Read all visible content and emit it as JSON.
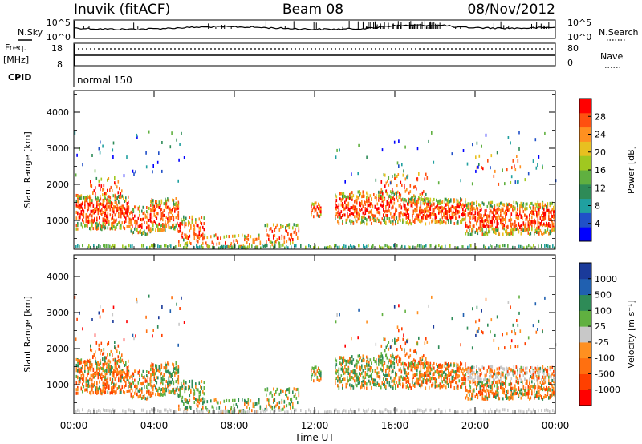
{
  "header": {
    "station": "Inuvik (fitACF)",
    "beam": "Beam 08",
    "date": "08/Nov/2012"
  },
  "top_panel": {
    "left_label_nsky": "N.Sky",
    "left_ticks": [
      "10^5",
      "10^0"
    ],
    "right_ticks": [
      "10^5",
      "10^0"
    ],
    "right_label": "N.Search"
  },
  "freq_panel": {
    "left_label_freq": "Freq.",
    "left_label_unit": "[MHz]",
    "left_ticks": [
      "18",
      "8"
    ],
    "right_ticks": [
      "80",
      "0"
    ],
    "right_label": "Nave"
  },
  "cpid_panel": {
    "label": "CPID",
    "value": "normal 150"
  },
  "chart_data": [
    {
      "type": "heatmap",
      "name": "power",
      "ylabel": "Slant Range [km]",
      "yticks": [
        "4000",
        "3000",
        "2000",
        "1000"
      ],
      "ylim": [
        200,
        4600
      ],
      "colorbar_label": "Power [dB]",
      "colorbar_ticks": [
        "28",
        "24",
        "20",
        "16",
        "12",
        "8",
        "4"
      ],
      "colorbar_colors": [
        "#0000ff",
        "#2050c8",
        "#20a0a0",
        "#2e8b57",
        "#60b040",
        "#a0c820",
        "#e8c020",
        "#ff9020",
        "#ff5010",
        "#ff0000"
      ]
    },
    {
      "type": "heatmap",
      "name": "velocity",
      "ylabel": "Slant Range [km]",
      "yticks": [
        "4000",
        "3000",
        "2000",
        "1000"
      ],
      "ylim": [
        200,
        4600
      ],
      "colorbar_label": "Velocity [m s⁻¹]",
      "colorbar_ticks": [
        "1000",
        "500",
        "100",
        "25",
        "-25",
        "-100",
        "-500",
        "-1000"
      ],
      "colorbar_colors": [
        "#1a3a9a",
        "#2060b0",
        "#2e8b57",
        "#60b040",
        "#c8c8c8",
        "#ff9020",
        "#ff7010",
        "#ff4000",
        "#ff0000"
      ],
      "xticks": [
        "00:00",
        "04:00",
        "08:00",
        "12:00",
        "16:00",
        "20:00",
        "00:00"
      ],
      "xlabel": "Time UT"
    }
  ]
}
